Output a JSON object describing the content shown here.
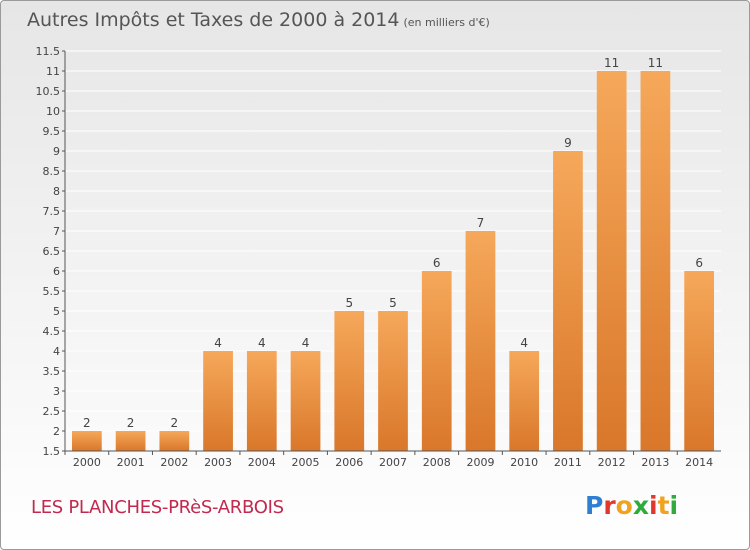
{
  "title": "Autres Impôts et Taxes de 2000 à 2014",
  "unit": "(en milliers d'€)",
  "commune": "LES PLANCHES-PRèS-ARBOIS",
  "logo": {
    "text": "Proxiti",
    "letter_colors": [
      "#2e7fd1",
      "#e2382c",
      "#f0a321",
      "#2faa3c",
      "#e2382c",
      "#f0a321",
      "#2faa3c"
    ]
  },
  "colors": {
    "bar_light": "#f6a85a",
    "bar_dark": "#d9772a",
    "axis": "#555555",
    "grid": "#ffffff"
  },
  "chart_data": {
    "type": "bar",
    "title": "Autres Impôts et Taxes de 2000 à 2014",
    "xlabel": "",
    "ylabel": "",
    "categories": [
      "2000",
      "2001",
      "2002",
      "2003",
      "2004",
      "2005",
      "2006",
      "2007",
      "2008",
      "2009",
      "2010",
      "2011",
      "2012",
      "2013",
      "2014"
    ],
    "values": [
      2,
      2,
      2,
      4,
      4,
      4,
      5,
      5,
      6,
      7,
      4,
      9,
      11,
      11,
      6
    ],
    "ylim": [
      1.5,
      11.5
    ],
    "yticks": [
      "1.5",
      "2",
      "2.5",
      "3",
      "3.5",
      "4",
      "4.5",
      "5",
      "5.5",
      "6",
      "6.5",
      "7",
      "7.5",
      "8",
      "8.5",
      "9",
      "9.5",
      "10",
      "10.5",
      "11",
      "11.5"
    ],
    "grid": true,
    "legend": "none"
  }
}
